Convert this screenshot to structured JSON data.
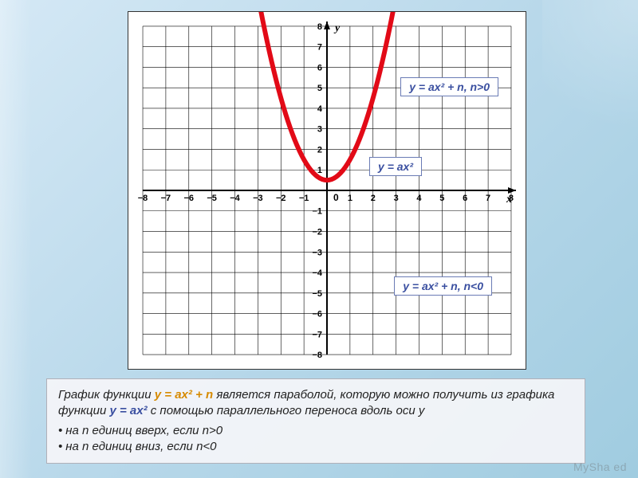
{
  "chart": {
    "type": "line",
    "background_color": "#ffffff",
    "grid_color": "#000000",
    "axis_color": "#000000",
    "curve_color": "#e20a17",
    "curve_width": 6,
    "xlim": [
      -8,
      8
    ],
    "ylim": [
      -8,
      8
    ],
    "xticks": [
      -8,
      -7,
      -6,
      -5,
      -4,
      -3,
      -2,
      -1,
      1,
      2,
      3,
      4,
      5,
      6,
      7,
      8
    ],
    "yticks": [
      -8,
      -7,
      -6,
      -5,
      -4,
      -3,
      -2,
      -1,
      1,
      2,
      3,
      4,
      5,
      6,
      7,
      8
    ],
    "x_axis_label": "x",
    "y_axis_label": "y",
    "origin_label": "0",
    "parabola": {
      "a": 1.0,
      "n": 0.5,
      "points_x": [
        -2.8,
        -2.5,
        -2.0,
        -1.5,
        -1.0,
        -0.5,
        0,
        0.5,
        1.0,
        1.5,
        2.0,
        2.5,
        2.8
      ]
    }
  },
  "labels": {
    "l1": "y = ax² + n, n>0",
    "l2": "y = ax²",
    "l3": "y = ax² + n, n<0"
  },
  "caption": {
    "pre": "График функции ",
    "f1": "y = ax² + n",
    "mid1": " является параболой, которую можно получить из графика функции ",
    "f2": "y = ax²",
    "mid2": " с помощью параллельного переноса вдоль оси y",
    "b1": "на n единиц вверх, если n>0",
    "b2": "на n единиц вниз, если n<0"
  },
  "watermark": "MySha ed"
}
